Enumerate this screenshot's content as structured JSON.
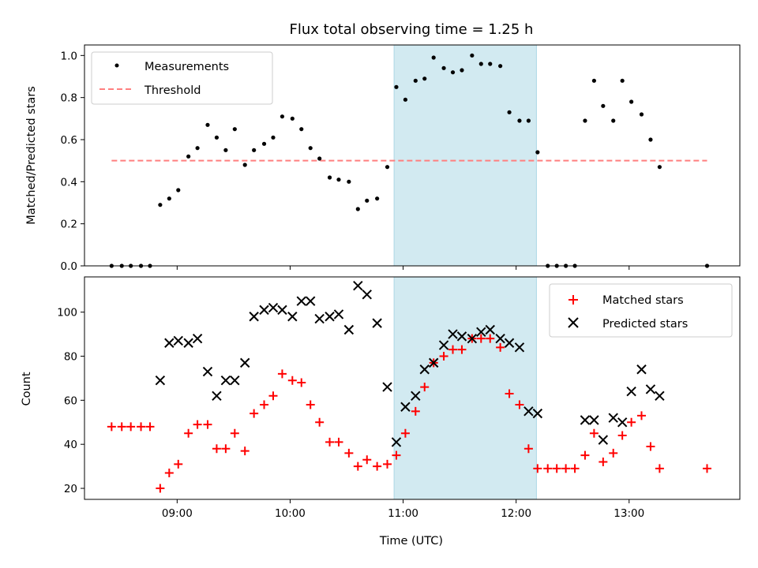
{
  "chart_data": {
    "type": "scatter",
    "title": "Flux total observing time = 1.25 h",
    "xlabel": "Time (UTC)",
    "x_ticks": [
      "09:00",
      "10:00",
      "11:00",
      "12:00",
      "13:00"
    ],
    "x_tick_values_hours": [
      9,
      10,
      11,
      12,
      13
    ],
    "xlim_hours": [
      8.18,
      13.98
    ],
    "highlight_span_hours": [
      10.92,
      12.18
    ],
    "highlight_color": "#add8e6",
    "panels": [
      {
        "ylabel": "Matched/Predicted stars",
        "ylim": [
          0,
          1.05
        ],
        "yticks": [
          "0.0",
          "0.2",
          "0.4",
          "0.6",
          "0.8",
          "1.0"
        ],
        "ytick_values": [
          0,
          0.2,
          0.4,
          0.6,
          0.8,
          1.0
        ],
        "legend": {
          "position": "upper-left",
          "entries": [
            "Measurements",
            "Threshold"
          ]
        },
        "series": [
          {
            "name": "Measurements",
            "marker": "dot",
            "color": "#000000",
            "points": [
              [
                8.42,
                0.0
              ],
              [
                8.51,
                0.0
              ],
              [
                8.59,
                0.0
              ],
              [
                8.68,
                0.0
              ],
              [
                8.76,
                0.0
              ],
              [
                8.85,
                0.29
              ],
              [
                8.93,
                0.32
              ],
              [
                9.01,
                0.36
              ],
              [
                9.1,
                0.52
              ],
              [
                9.18,
                0.56
              ],
              [
                9.27,
                0.67
              ],
              [
                9.35,
                0.61
              ],
              [
                9.43,
                0.55
              ],
              [
                9.51,
                0.65
              ],
              [
                9.6,
                0.48
              ],
              [
                9.68,
                0.55
              ],
              [
                9.77,
                0.58
              ],
              [
                9.85,
                0.61
              ],
              [
                9.93,
                0.71
              ],
              [
                10.02,
                0.7
              ],
              [
                10.1,
                0.65
              ],
              [
                10.18,
                0.56
              ],
              [
                10.26,
                0.51
              ],
              [
                10.35,
                0.42
              ],
              [
                10.43,
                0.41
              ],
              [
                10.52,
                0.4
              ],
              [
                10.6,
                0.27
              ],
              [
                10.68,
                0.31
              ],
              [
                10.77,
                0.32
              ],
              [
                10.86,
                0.47
              ],
              [
                10.94,
                0.85
              ],
              [
                11.02,
                0.79
              ],
              [
                11.11,
                0.88
              ],
              [
                11.19,
                0.89
              ],
              [
                11.27,
                0.99
              ],
              [
                11.36,
                0.94
              ],
              [
                11.44,
                0.92
              ],
              [
                11.52,
                0.93
              ],
              [
                11.61,
                1.0
              ],
              [
                11.69,
                0.96
              ],
              [
                11.77,
                0.96
              ],
              [
                11.86,
                0.95
              ],
              [
                11.94,
                0.73
              ],
              [
                12.03,
                0.69
              ],
              [
                12.11,
                0.69
              ],
              [
                12.19,
                0.54
              ],
              [
                12.28,
                0.0
              ],
              [
                12.36,
                0.0
              ],
              [
                12.44,
                0.0
              ],
              [
                12.52,
                0.0
              ],
              [
                12.61,
                0.69
              ],
              [
                12.69,
                0.88
              ],
              [
                12.77,
                0.76
              ],
              [
                12.86,
                0.69
              ],
              [
                12.94,
                0.88
              ],
              [
                13.02,
                0.78
              ],
              [
                13.11,
                0.72
              ],
              [
                13.19,
                0.6
              ],
              [
                13.27,
                0.47
              ],
              [
                13.69,
                0.0
              ]
            ]
          },
          {
            "name": "Threshold",
            "marker": "dashed-line",
            "color": "#ff7f7f",
            "value": 0.5,
            "x_range_hours": [
              8.42,
              13.69
            ]
          }
        ]
      },
      {
        "ylabel": "Count",
        "ylim": [
          15,
          116
        ],
        "yticks": [
          "20",
          "40",
          "60",
          "80",
          "100"
        ],
        "ytick_values": [
          20,
          40,
          60,
          80,
          100
        ],
        "legend": {
          "position": "upper-right",
          "entries": [
            "Matched stars",
            "Predicted stars"
          ]
        },
        "series": [
          {
            "name": "Matched stars",
            "marker": "plus",
            "color": "#ff0000",
            "points": [
              [
                8.42,
                48
              ],
              [
                8.51,
                48
              ],
              [
                8.59,
                48
              ],
              [
                8.68,
                48
              ],
              [
                8.76,
                48
              ],
              [
                8.85,
                20
              ],
              [
                8.93,
                27
              ],
              [
                9.01,
                31
              ],
              [
                9.1,
                45
              ],
              [
                9.18,
                49
              ],
              [
                9.27,
                49
              ],
              [
                9.35,
                38
              ],
              [
                9.43,
                38
              ],
              [
                9.51,
                45
              ],
              [
                9.6,
                37
              ],
              [
                9.68,
                54
              ],
              [
                9.77,
                58
              ],
              [
                9.85,
                62
              ],
              [
                9.93,
                72
              ],
              [
                10.02,
                69
              ],
              [
                10.1,
                68
              ],
              [
                10.18,
                58
              ],
              [
                10.26,
                50
              ],
              [
                10.35,
                41
              ],
              [
                10.43,
                41
              ],
              [
                10.52,
                36
              ],
              [
                10.6,
                30
              ],
              [
                10.68,
                33
              ],
              [
                10.77,
                30
              ],
              [
                10.86,
                31
              ],
              [
                10.94,
                35
              ],
              [
                11.02,
                45
              ],
              [
                11.11,
                55
              ],
              [
                11.19,
                66
              ],
              [
                11.27,
                77
              ],
              [
                11.36,
                80
              ],
              [
                11.44,
                83
              ],
              [
                11.52,
                83
              ],
              [
                11.61,
                88
              ],
              [
                11.69,
                88
              ],
              [
                11.77,
                88
              ],
              [
                11.86,
                84
              ],
              [
                11.94,
                63
              ],
              [
                12.03,
                58
              ],
              [
                12.11,
                38
              ],
              [
                12.19,
                29
              ],
              [
                12.28,
                29
              ],
              [
                12.36,
                29
              ],
              [
                12.44,
                29
              ],
              [
                12.52,
                29
              ],
              [
                12.61,
                35
              ],
              [
                12.69,
                45
              ],
              [
                12.77,
                32
              ],
              [
                12.86,
                36
              ],
              [
                12.94,
                44
              ],
              [
                13.02,
                50
              ],
              [
                13.11,
                53
              ],
              [
                13.19,
                39
              ],
              [
                13.27,
                29
              ],
              [
                13.69,
                29
              ]
            ]
          },
          {
            "name": "Predicted stars",
            "marker": "x",
            "color": "#000000",
            "points": [
              [
                8.85,
                69
              ],
              [
                8.93,
                86
              ],
              [
                9.01,
                87
              ],
              [
                9.1,
                86
              ],
              [
                9.18,
                88
              ],
              [
                9.27,
                73
              ],
              [
                9.35,
                62
              ],
              [
                9.43,
                69
              ],
              [
                9.51,
                69
              ],
              [
                9.6,
                77
              ],
              [
                9.68,
                98
              ],
              [
                9.77,
                101
              ],
              [
                9.85,
                102
              ],
              [
                9.93,
                101
              ],
              [
                10.02,
                98
              ],
              [
                10.1,
                105
              ],
              [
                10.18,
                105
              ],
              [
                10.26,
                97
              ],
              [
                10.35,
                98
              ],
              [
                10.43,
                99
              ],
              [
                10.52,
                92
              ],
              [
                10.6,
                112
              ],
              [
                10.68,
                108
              ],
              [
                10.77,
                95
              ],
              [
                10.86,
                66
              ],
              [
                10.94,
                41
              ],
              [
                11.02,
                57
              ],
              [
                11.11,
                62
              ],
              [
                11.19,
                74
              ],
              [
                11.27,
                77
              ],
              [
                11.36,
                85
              ],
              [
                11.44,
                90
              ],
              [
                11.52,
                89
              ],
              [
                11.61,
                88
              ],
              [
                11.69,
                91
              ],
              [
                11.77,
                92
              ],
              [
                11.86,
                88
              ],
              [
                11.94,
                86
              ],
              [
                12.03,
                84
              ],
              [
                12.11,
                55
              ],
              [
                12.19,
                54
              ],
              [
                12.61,
                51
              ],
              [
                12.69,
                51
              ],
              [
                12.77,
                42
              ],
              [
                12.86,
                52
              ],
              [
                12.94,
                50
              ],
              [
                13.02,
                64
              ],
              [
                13.11,
                74
              ],
              [
                13.19,
                65
              ],
              [
                13.27,
                62
              ]
            ]
          }
        ]
      }
    ]
  }
}
